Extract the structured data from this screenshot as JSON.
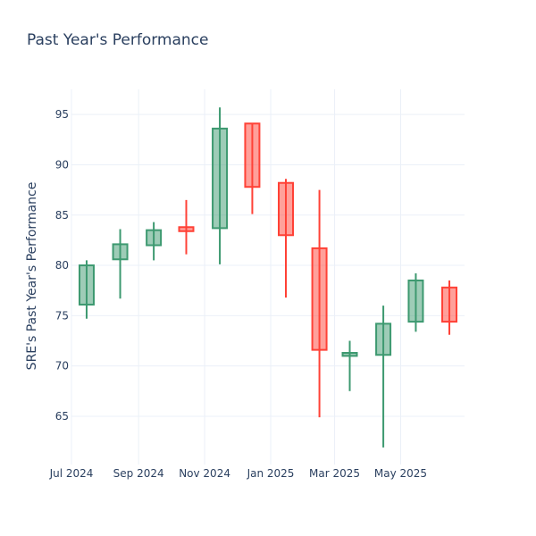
{
  "chart_data": {
    "type": "candlestick",
    "title": "Past Year's Performance",
    "xlabel": "",
    "ylabel": "SRE's Past Year's Performance",
    "ylim": [
      60.2,
      97.5
    ],
    "y_ticks": [
      65,
      70,
      75,
      80,
      85,
      90,
      95
    ],
    "x_ticks": [
      {
        "month": "2024-07",
        "label": "Jul 2024"
      },
      {
        "month": "2024-09",
        "label": "Sep 2024"
      },
      {
        "month": "2024-11",
        "label": "Nov 2024"
      },
      {
        "month": "2025-01",
        "label": "Jan 2025"
      },
      {
        "month": "2025-03",
        "label": "Mar 2025"
      },
      {
        "month": "2025-05",
        "label": "May 2025"
      }
    ],
    "grid": true,
    "increasing_color": "#3D9970",
    "decreasing_color": "#FF4136",
    "candles": [
      {
        "month": "2024-07",
        "open": 76.1,
        "high": 80.5,
        "low": 74.7,
        "close": 80.0
      },
      {
        "month": "2024-08",
        "open": 80.6,
        "high": 83.6,
        "low": 76.7,
        "close": 82.1
      },
      {
        "month": "2024-09",
        "open": 82.0,
        "high": 84.3,
        "low": 80.5,
        "close": 83.5
      },
      {
        "month": "2024-10",
        "open": 83.8,
        "high": 86.5,
        "low": 81.1,
        "close": 83.4
      },
      {
        "month": "2024-11",
        "open": 83.7,
        "high": 95.7,
        "low": 80.1,
        "close": 93.6
      },
      {
        "month": "2024-12",
        "open": 94.1,
        "high": 94.1,
        "low": 85.1,
        "close": 87.8
      },
      {
        "month": "2025-01",
        "open": 88.2,
        "high": 88.6,
        "low": 76.8,
        "close": 83.0
      },
      {
        "month": "2025-02",
        "open": 81.7,
        "high": 87.5,
        "low": 64.9,
        "close": 71.6
      },
      {
        "month": "2025-03",
        "open": 71.0,
        "high": 72.5,
        "low": 67.5,
        "close": 71.3
      },
      {
        "month": "2025-04",
        "open": 71.1,
        "high": 76.0,
        "low": 61.9,
        "close": 74.2
      },
      {
        "month": "2025-05",
        "open": 74.4,
        "high": 79.2,
        "low": 73.4,
        "close": 78.5
      },
      {
        "month": "2025-06",
        "open": 77.8,
        "high": 78.5,
        "low": 73.1,
        "close": 74.4
      }
    ]
  }
}
